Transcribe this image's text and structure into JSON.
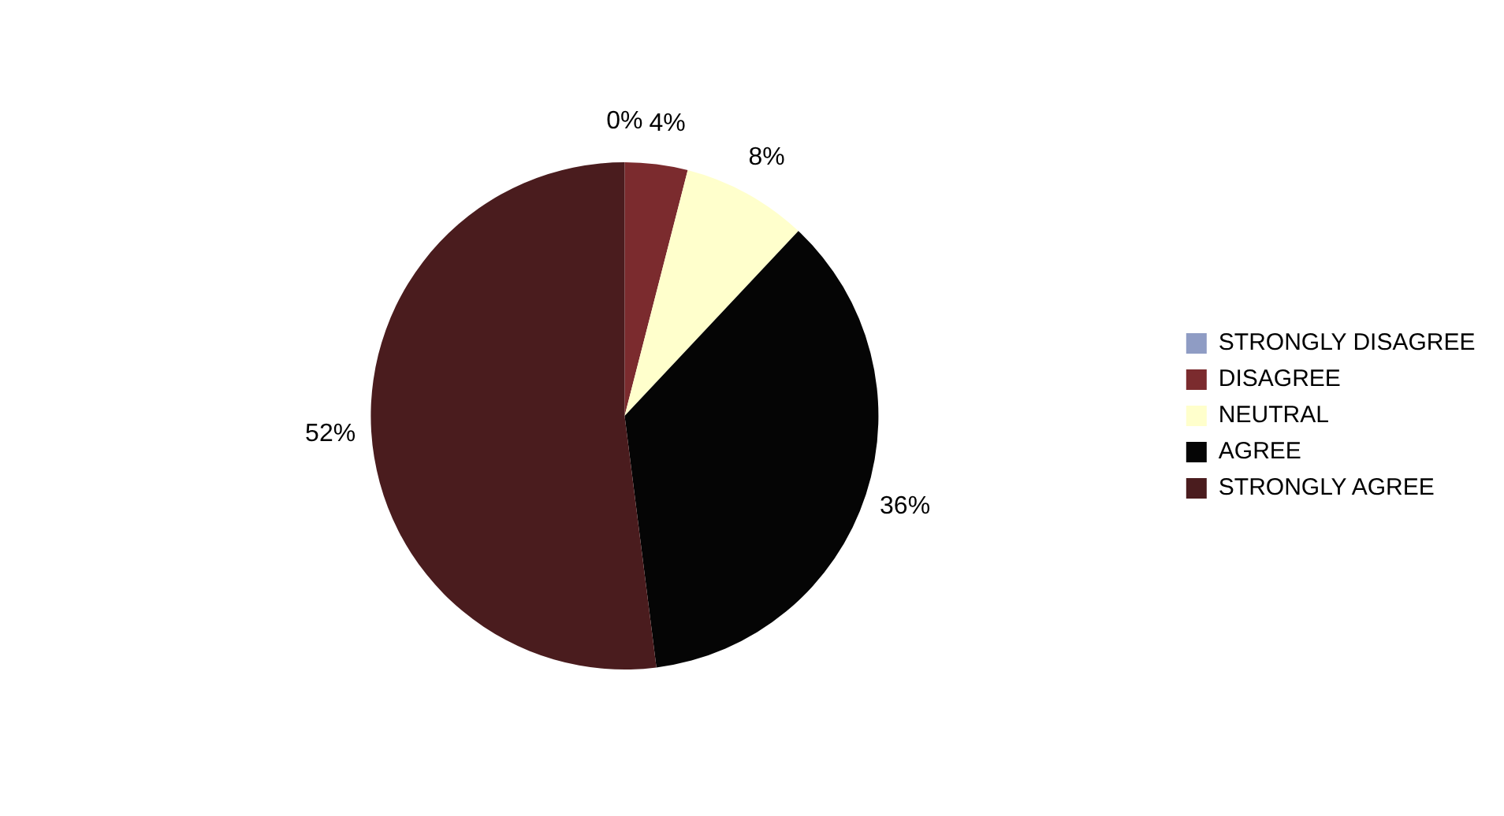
{
  "chart_data": {
    "type": "pie",
    "categories": [
      "STRONGLY DISAGREE",
      "DISAGREE",
      "NEUTRAL",
      "AGREE",
      "STRONGLY AGREE"
    ],
    "values": [
      0,
      4,
      8,
      36,
      52
    ],
    "colors": [
      "#8f9cc4",
      "#7b2b2e",
      "#ffffcc",
      "#050505",
      "#4a1c1e"
    ],
    "value_labels": [
      "0%",
      "4%",
      "8%",
      "36%",
      "52%"
    ],
    "legend": "right"
  }
}
